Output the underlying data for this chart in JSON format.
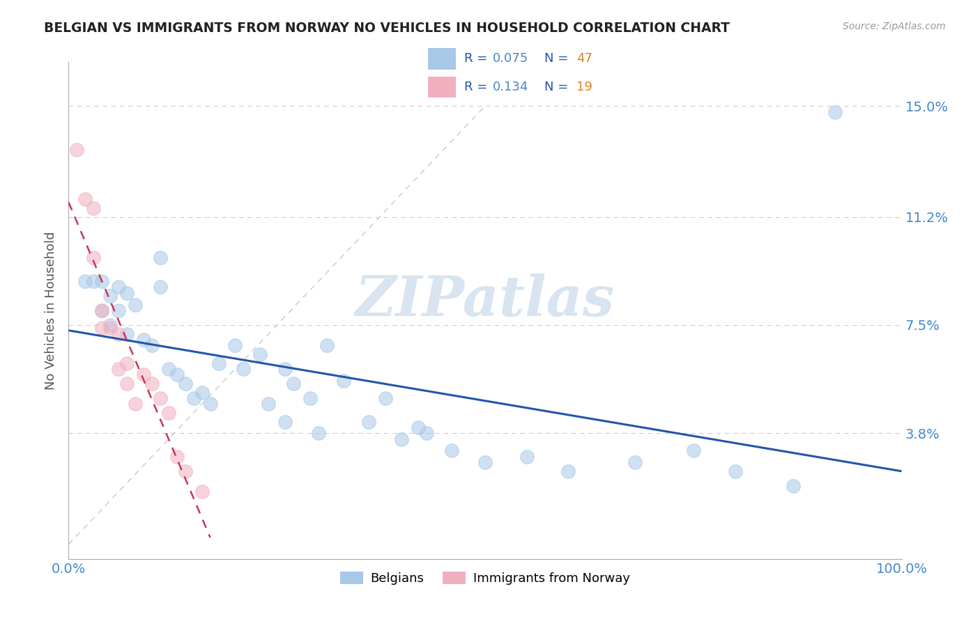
{
  "title": "BELGIAN VS IMMIGRANTS FROM NORWAY NO VEHICLES IN HOUSEHOLD CORRELATION CHART",
  "source": "Source: ZipAtlas.com",
  "ylabel": "No Vehicles in Household",
  "xlim": [
    0.0,
    1.0
  ],
  "ylim": [
    -0.005,
    0.165
  ],
  "yticks": [
    0.038,
    0.075,
    0.112,
    0.15
  ],
  "ytick_labels": [
    "3.8%",
    "7.5%",
    "11.2%",
    "15.0%"
  ],
  "xticks": [
    0.0,
    1.0
  ],
  "xtick_labels": [
    "0.0%",
    "100.0%"
  ],
  "belgian_color": "#a8c8e8",
  "norway_color": "#f0b0c0",
  "belgian_line_color": "#2255aa",
  "norway_line_color": "#cc3355",
  "ref_line_color": "#c8c8c8",
  "grid_color": "#cccccc",
  "title_color": "#222222",
  "axis_label_color": "#555555",
  "tick_label_color": "#4488cc",
  "watermark_color": "#d8e4f0",
  "belgians_x": [
    0.02,
    0.03,
    0.04,
    0.04,
    0.05,
    0.05,
    0.06,
    0.06,
    0.07,
    0.07,
    0.08,
    0.09,
    0.1,
    0.11,
    0.11,
    0.12,
    0.13,
    0.14,
    0.15,
    0.16,
    0.17,
    0.18,
    0.2,
    0.21,
    0.23,
    0.24,
    0.26,
    0.27,
    0.29,
    0.31,
    0.33,
    0.36,
    0.38,
    0.4,
    0.43,
    0.46,
    0.5,
    0.55,
    0.6,
    0.68,
    0.75,
    0.8,
    0.87,
    0.92,
    0.26,
    0.3,
    0.42
  ],
  "belgians_y": [
    0.09,
    0.09,
    0.09,
    0.08,
    0.085,
    0.075,
    0.088,
    0.08,
    0.086,
    0.072,
    0.082,
    0.07,
    0.068,
    0.098,
    0.088,
    0.06,
    0.058,
    0.055,
    0.05,
    0.052,
    0.048,
    0.062,
    0.068,
    0.06,
    0.065,
    0.048,
    0.06,
    0.055,
    0.05,
    0.068,
    0.056,
    0.042,
    0.05,
    0.036,
    0.038,
    0.032,
    0.028,
    0.03,
    0.025,
    0.028,
    0.032,
    0.025,
    0.02,
    0.148,
    0.042,
    0.038,
    0.04
  ],
  "norway_x": [
    0.01,
    0.02,
    0.03,
    0.03,
    0.04,
    0.04,
    0.05,
    0.06,
    0.06,
    0.07,
    0.07,
    0.08,
    0.09,
    0.1,
    0.11,
    0.12,
    0.13,
    0.14,
    0.16
  ],
  "norway_y": [
    0.135,
    0.118,
    0.115,
    0.098,
    0.08,
    0.074,
    0.074,
    0.072,
    0.06,
    0.062,
    0.055,
    0.048,
    0.058,
    0.055,
    0.05,
    0.045,
    0.03,
    0.025,
    0.018
  ],
  "figsize": [
    14.06,
    8.92
  ],
  "dpi": 100
}
